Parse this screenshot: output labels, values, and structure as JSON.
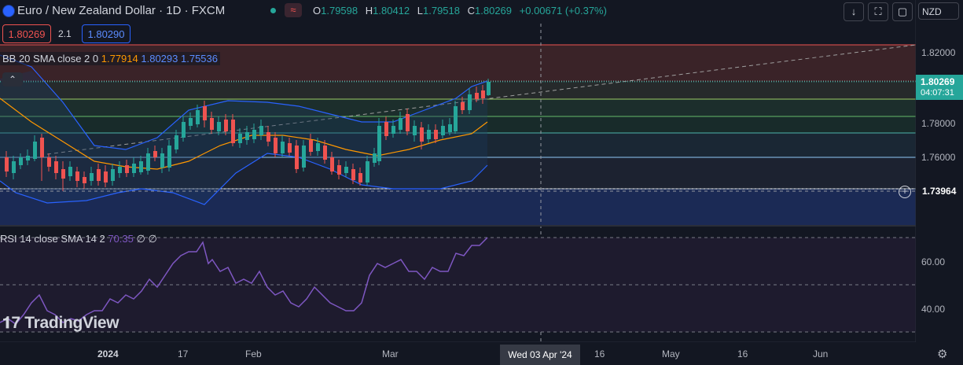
{
  "header": {
    "symbol_title": "Euro / New Zealand Dollar · 1D · FXCM",
    "ohlc": {
      "o_label": "O",
      "o": "1.79598",
      "h_label": "H",
      "h": "1.80412",
      "l_label": "L",
      "l": "1.79518",
      "c_label": "C",
      "c": "1.80269",
      "change": "+0.00671 (+0.37%)"
    },
    "currency": "NZD",
    "tools": {
      "download": "↓",
      "expand": "⛶",
      "snapshot": "▢"
    }
  },
  "trade": {
    "sell_price": "1.80269",
    "spread": "2.1",
    "buy_price": "1.80290"
  },
  "bb_legend": {
    "label": "BB 20 SMA close 2 0",
    "basis": "1.77914",
    "upper": "1.80293",
    "lower": "1.75536"
  },
  "rsi_legend": {
    "label": "RSI 14 close SMA 14 2",
    "value": "70.35",
    "na1": "∅",
    "na2": "∅"
  },
  "logo": "TradingView",
  "price_axis": {
    "labels": [
      "1.82000",
      "1.78000",
      "1.76000"
    ],
    "current_price": "1.80269",
    "countdown": "04:07:31",
    "hover_price": "1.73964"
  },
  "rsi_axis": {
    "labels": [
      "60.00",
      "40.00"
    ]
  },
  "time_axis": {
    "labels": [
      "2024",
      "17",
      "Feb",
      "Mar",
      "16",
      "May",
      "16",
      "Jun"
    ],
    "crosshair_date": "Wed 03 Apr '24"
  },
  "colors": {
    "up": "#26a69a",
    "down": "#ef5350",
    "bb_band": "#2962ff",
    "bb_basis": "#ff9800",
    "rsi": "#7e57c2"
  },
  "icons": {
    "settings": "gear-icon",
    "collapse": "chevron-up-icon",
    "add": "plus-circle-icon"
  }
}
